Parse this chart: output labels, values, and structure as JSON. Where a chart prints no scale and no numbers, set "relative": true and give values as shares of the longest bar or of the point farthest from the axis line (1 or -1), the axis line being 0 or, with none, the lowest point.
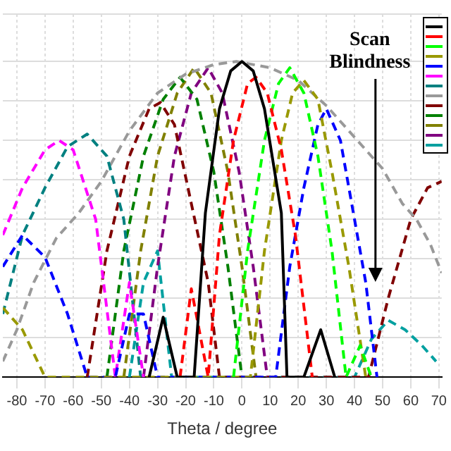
{
  "chart_data": {
    "type": "line",
    "relative": true,
    "xlabel": "Theta / degree",
    "xlim": [
      -85,
      71
    ],
    "xticks": [
      -80,
      -70,
      -60,
      -50,
      -40,
      -30,
      -20,
      -10,
      0,
      10,
      20,
      30,
      40,
      50,
      60,
      70
    ],
    "grid": true,
    "marker": "none",
    "line_style": "dashed",
    "annotations": [
      "Scan Blindness"
    ],
    "series": [
      {
        "color": "#000000",
        "line_style": "solid",
        "x": [
          -33,
          -28,
          -23,
          -17,
          -13,
          -8,
          -4,
          0,
          4,
          8,
          14,
          16,
          22,
          28,
          33
        ],
        "values": [
          0,
          0.19,
          0,
          0,
          0.52,
          0.85,
          0.97,
          1,
          0.97,
          0.85,
          0.52,
          0,
          0,
          0.15,
          0
        ]
      },
      {
        "color": "#ff0000",
        "x": [
          -22,
          -18,
          -12,
          -8,
          -3,
          2,
          5,
          9,
          14,
          19,
          25
        ],
        "values": [
          0,
          0.28,
          0,
          0.45,
          0.75,
          0.93,
          0.95,
          0.9,
          0.72,
          0.45,
          0
        ]
      },
      {
        "color": "#00ff00",
        "x": [
          -3,
          2,
          8,
          13,
          17,
          22,
          27,
          32,
          37,
          42,
          46
        ],
        "values": [
          0,
          0.4,
          0.75,
          0.93,
          0.98,
          0.9,
          0.7,
          0.4,
          0,
          0.1,
          0
        ]
      },
      {
        "color": "#999900",
        "x": [
          -85,
          -78,
          -70,
          3,
          8,
          14,
          18,
          22,
          27,
          32,
          38,
          44
        ],
        "values": [
          0.22,
          0.15,
          0,
          0,
          0.4,
          0.75,
          0.9,
          0.94,
          0.88,
          0.65,
          0.35,
          0
        ]
      },
      {
        "color": "#0000ff",
        "x": [
          -85,
          -78,
          -70,
          -62,
          -55,
          -45,
          -40,
          -35,
          -30,
          12,
          17,
          22,
          27,
          30,
          35,
          40,
          44,
          48
        ],
        "values": [
          0.35,
          0.45,
          0.38,
          0.2,
          0,
          0,
          0.2,
          0.2,
          0,
          0,
          0.35,
          0.6,
          0.8,
          0.85,
          0.75,
          0.5,
          0.3,
          0
        ]
      },
      {
        "color": "#ff00ff",
        "x": [
          -85,
          -78,
          -70,
          -65,
          -60,
          -52,
          -45,
          -40,
          -35
        ],
        "values": [
          0.45,
          0.6,
          0.72,
          0.75,
          0.72,
          0.5,
          0,
          0.3,
          0
        ]
      },
      {
        "color": "#008080",
        "x": [
          -85,
          -78,
          -70,
          -62,
          -55,
          -48,
          -42,
          -36
        ],
        "values": [
          0.2,
          0.45,
          0.6,
          0.73,
          0.77,
          0.7,
          0.5,
          0
        ]
      },
      {
        "color": "#999999",
        "x": [
          -85,
          -80,
          -74,
          -66,
          -58,
          -50,
          -40,
          -30,
          -20,
          -10,
          -2,
          10,
          20,
          30,
          40,
          50,
          57,
          62,
          67,
          71
        ],
        "values": [
          0.05,
          0.15,
          0.3,
          0.44,
          0.52,
          0.62,
          0.78,
          0.9,
          0.96,
          0.99,
          1,
          0.98,
          0.94,
          0.86,
          0.76,
          0.66,
          0.55,
          0.5,
          0.42,
          0.33
        ]
      },
      {
        "color": "#800000",
        "x": [
          -55,
          -48,
          -40,
          -33,
          -29,
          -24,
          -18,
          -12,
          -8,
          45,
          52,
          60,
          66,
          71
        ],
        "values": [
          0,
          0.4,
          0.7,
          0.85,
          0.87,
          0.8,
          0.55,
          0.3,
          0,
          0,
          0.25,
          0.5,
          0.6,
          0.62
        ]
      },
      {
        "color": "#008000",
        "x": [
          -48,
          -42,
          -35,
          -28,
          -22,
          -16,
          -10,
          -5,
          0
        ],
        "values": [
          0,
          0.4,
          0.7,
          0.88,
          0.95,
          0.88,
          0.65,
          0.35,
          0
        ]
      },
      {
        "color": "#808000",
        "x": [
          -42,
          -36,
          -30,
          -23,
          -17,
          -11,
          -5,
          0,
          5
        ],
        "values": [
          0,
          0.4,
          0.7,
          0.9,
          0.98,
          0.9,
          0.65,
          0.35,
          0
        ]
      },
      {
        "color": "#800080",
        "x": [
          -35,
          -30,
          -24,
          -18,
          -12,
          -7,
          -1,
          4,
          9
        ],
        "values": [
          0,
          0.35,
          0.7,
          0.9,
          0.98,
          0.9,
          0.65,
          0.35,
          0
        ]
      },
      {
        "color": "#00a0a0",
        "x": [
          -40,
          -35,
          -30,
          -25,
          40,
          46,
          52,
          58,
          64,
          69
        ],
        "values": [
          0,
          0.3,
          0.4,
          0,
          0,
          0.12,
          0.18,
          0.15,
          0.1,
          0.05
        ]
      }
    ]
  }
}
